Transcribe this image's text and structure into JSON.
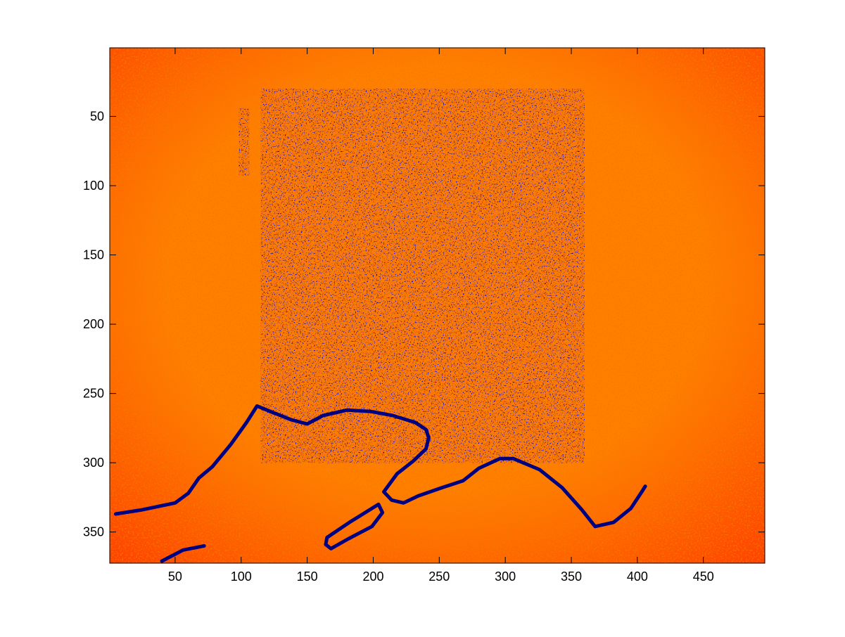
{
  "chart_data": {
    "type": "heatmap",
    "title": "",
    "xlabel": "",
    "ylabel": "",
    "xlim": [
      0.5,
      496.5
    ],
    "ylim": [
      0.5,
      372.5
    ],
    "y_reversed": true,
    "grid": false,
    "colormap": "hot-like (orange/red dominant, with dark blue and dark red speckles)",
    "x_ticks": [
      50,
      100,
      150,
      200,
      250,
      300,
      350,
      400,
      450
    ],
    "y_ticks": [
      50,
      100,
      150,
      200,
      250,
      300,
      350
    ],
    "colors": {
      "orange": "#ff7f00",
      "red_orange": "#ff3f00",
      "dark_red": "#bf1f0f",
      "dark_blue": "#000080"
    },
    "regions": [
      {
        "name": "noisy-rectangle",
        "x": [
          115,
          360
        ],
        "y": [
          30,
          300
        ]
      },
      {
        "name": "vertical-streak",
        "x": [
          98,
          106
        ],
        "y": [
          44,
          93
        ]
      }
    ],
    "contours": [
      {
        "name": "left-shape-outline",
        "points": [
          [
            5,
            337
          ],
          [
            25,
            334
          ],
          [
            50,
            329
          ],
          [
            60,
            322
          ],
          [
            68,
            311
          ],
          [
            78,
            303
          ],
          [
            92,
            287
          ],
          [
            104,
            271
          ],
          [
            112,
            259
          ],
          [
            122,
            263
          ],
          [
            138,
            269
          ],
          [
            150,
            272
          ],
          [
            162,
            266
          ],
          [
            180,
            262
          ],
          [
            198,
            263
          ],
          [
            215,
            266
          ],
          [
            232,
            271
          ],
          [
            240,
            276
          ],
          [
            242,
            282
          ],
          [
            240,
            290
          ],
          [
            230,
            299
          ],
          [
            218,
            308
          ],
          [
            208,
            321
          ],
          [
            214,
            327
          ],
          [
            223,
            329
          ],
          [
            234,
            324
          ],
          [
            252,
            318
          ],
          [
            268,
            313
          ],
          [
            280,
            304
          ],
          [
            296,
            297
          ],
          [
            306,
            297
          ],
          [
            326,
            305
          ],
          [
            343,
            318
          ],
          [
            358,
            334
          ],
          [
            368,
            346
          ],
          [
            382,
            343
          ],
          [
            395,
            333
          ],
          [
            404,
            320
          ],
          [
            406,
            317
          ]
        ]
      },
      {
        "name": "small-capsule",
        "points": [
          [
            165,
            354
          ],
          [
            182,
            343
          ],
          [
            204,
            330
          ],
          [
            207,
            336
          ],
          [
            199,
            346
          ],
          [
            181,
            355
          ],
          [
            168,
            362
          ],
          [
            164,
            359
          ],
          [
            165,
            354
          ]
        ]
      },
      {
        "name": "bottom-curve",
        "points": [
          [
            40,
            371
          ],
          [
            56,
            363
          ],
          [
            72,
            360
          ]
        ]
      }
    ]
  }
}
